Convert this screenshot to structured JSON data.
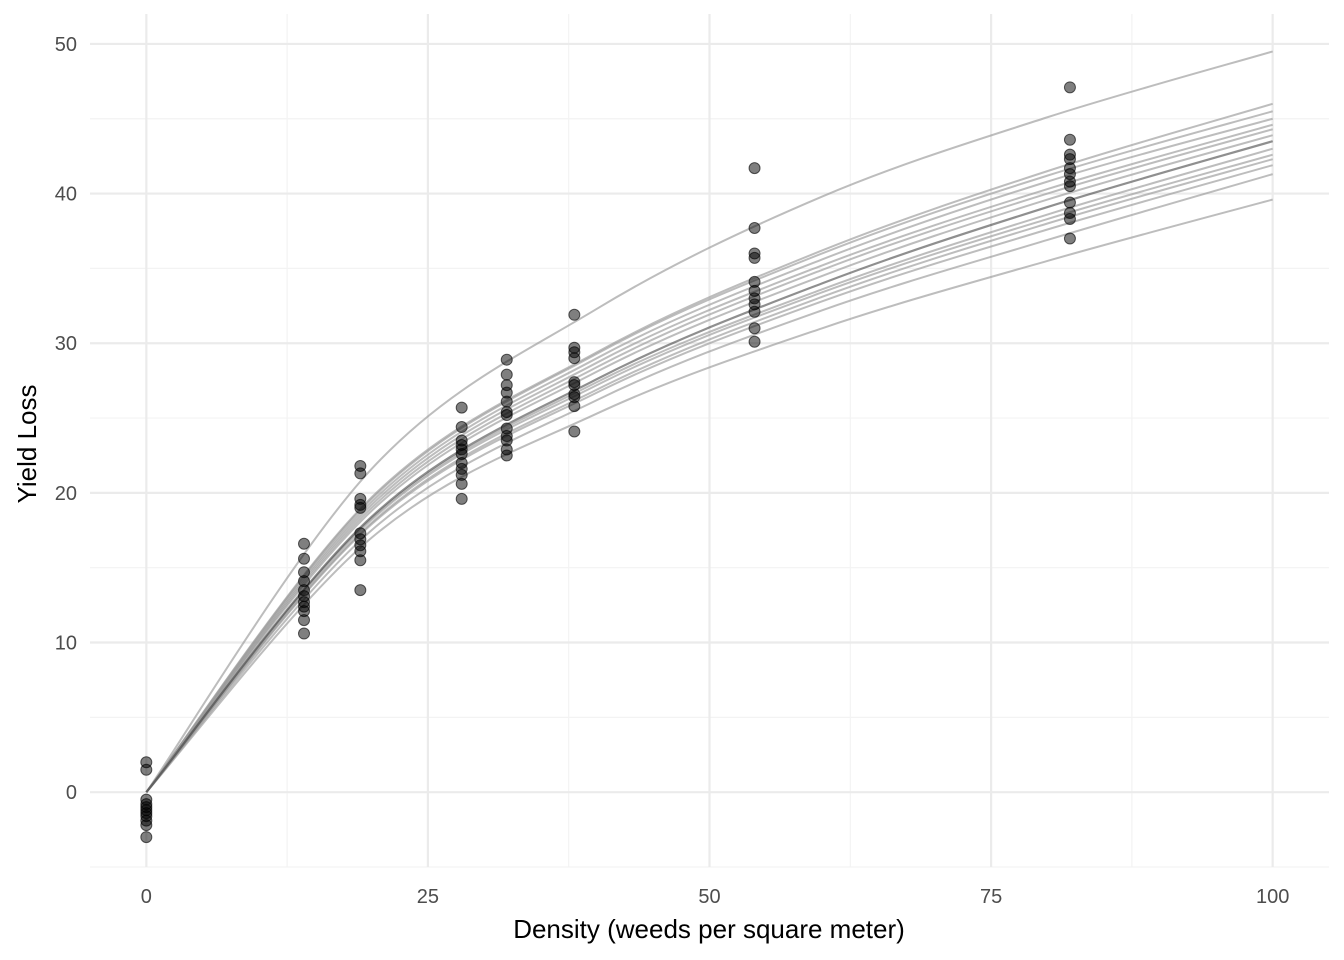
{
  "chart_data": {
    "type": "scatter",
    "title": "",
    "xlabel": "Density (weeds per square meter)",
    "ylabel": "Yield Loss",
    "xlim": [
      -5,
      105
    ],
    "ylim": [
      -5,
      52
    ],
    "x_ticks": [
      0,
      25,
      50,
      75,
      100
    ],
    "y_ticks": [
      0,
      10,
      20,
      30,
      40,
      50
    ],
    "x_tick_labels": [
      "0",
      "25",
      "50",
      "75",
      "100"
    ],
    "y_tick_labels": [
      "0",
      "10",
      "20",
      "30",
      "40",
      "50"
    ],
    "grid": true,
    "legend": "none",
    "point_color": "#000000",
    "point_opacity": 0.5,
    "curve_color": "#999999",
    "points": [
      {
        "x": 0,
        "y": 2.0
      },
      {
        "x": 0,
        "y": 1.5
      },
      {
        "x": 0,
        "y": -0.5
      },
      {
        "x": 0,
        "y": -0.8
      },
      {
        "x": 0,
        "y": -1.0
      },
      {
        "x": 0,
        "y": -1.2
      },
      {
        "x": 0,
        "y": -1.4
      },
      {
        "x": 0,
        "y": -1.6
      },
      {
        "x": 0,
        "y": -1.9
      },
      {
        "x": 0,
        "y": -2.2
      },
      {
        "x": 0,
        "y": -3.0
      },
      {
        "x": 14,
        "y": 16.6
      },
      {
        "x": 14,
        "y": 15.6
      },
      {
        "x": 14,
        "y": 14.7
      },
      {
        "x": 14,
        "y": 14.1
      },
      {
        "x": 14,
        "y": 13.5
      },
      {
        "x": 14,
        "y": 13.1
      },
      {
        "x": 14,
        "y": 12.7
      },
      {
        "x": 14,
        "y": 12.4
      },
      {
        "x": 14,
        "y": 12.1
      },
      {
        "x": 14,
        "y": 11.5
      },
      {
        "x": 14,
        "y": 10.6
      },
      {
        "x": 19,
        "y": 21.8
      },
      {
        "x": 19,
        "y": 21.3
      },
      {
        "x": 19,
        "y": 19.6
      },
      {
        "x": 19,
        "y": 19.2
      },
      {
        "x": 19,
        "y": 19.0
      },
      {
        "x": 19,
        "y": 17.3
      },
      {
        "x": 19,
        "y": 16.9
      },
      {
        "x": 19,
        "y": 16.5
      },
      {
        "x": 19,
        "y": 16.1
      },
      {
        "x": 19,
        "y": 15.5
      },
      {
        "x": 19,
        "y": 13.5
      },
      {
        "x": 28,
        "y": 25.7
      },
      {
        "x": 28,
        "y": 24.4
      },
      {
        "x": 28,
        "y": 23.5
      },
      {
        "x": 28,
        "y": 23.2
      },
      {
        "x": 28,
        "y": 22.9
      },
      {
        "x": 28,
        "y": 22.6
      },
      {
        "x": 28,
        "y": 22.0
      },
      {
        "x": 28,
        "y": 21.6
      },
      {
        "x": 28,
        "y": 21.2
      },
      {
        "x": 28,
        "y": 20.6
      },
      {
        "x": 28,
        "y": 19.6
      },
      {
        "x": 32,
        "y": 28.9
      },
      {
        "x": 32,
        "y": 27.9
      },
      {
        "x": 32,
        "y": 27.2
      },
      {
        "x": 32,
        "y": 26.7
      },
      {
        "x": 32,
        "y": 26.1
      },
      {
        "x": 32,
        "y": 25.4
      },
      {
        "x": 32,
        "y": 25.2
      },
      {
        "x": 32,
        "y": 24.3
      },
      {
        "x": 32,
        "y": 23.8
      },
      {
        "x": 32,
        "y": 23.5
      },
      {
        "x": 32,
        "y": 22.9
      },
      {
        "x": 32,
        "y": 22.5
      },
      {
        "x": 38,
        "y": 31.9
      },
      {
        "x": 38,
        "y": 29.7
      },
      {
        "x": 38,
        "y": 29.4
      },
      {
        "x": 38,
        "y": 29.0
      },
      {
        "x": 38,
        "y": 27.4
      },
      {
        "x": 38,
        "y": 27.2
      },
      {
        "x": 38,
        "y": 26.6
      },
      {
        "x": 38,
        "y": 26.4
      },
      {
        "x": 38,
        "y": 25.8
      },
      {
        "x": 38,
        "y": 24.1
      },
      {
        "x": 54,
        "y": 41.7
      },
      {
        "x": 54,
        "y": 37.7
      },
      {
        "x": 54,
        "y": 36.0
      },
      {
        "x": 54,
        "y": 35.7
      },
      {
        "x": 54,
        "y": 34.1
      },
      {
        "x": 54,
        "y": 33.5
      },
      {
        "x": 54,
        "y": 33.0
      },
      {
        "x": 54,
        "y": 32.6
      },
      {
        "x": 54,
        "y": 32.1
      },
      {
        "x": 54,
        "y": 31.0
      },
      {
        "x": 54,
        "y": 30.1
      },
      {
        "x": 82,
        "y": 47.1
      },
      {
        "x": 82,
        "y": 43.6
      },
      {
        "x": 82,
        "y": 42.6
      },
      {
        "x": 82,
        "y": 42.3
      },
      {
        "x": 82,
        "y": 41.7
      },
      {
        "x": 82,
        "y": 41.3
      },
      {
        "x": 82,
        "y": 40.8
      },
      {
        "x": 82,
        "y": 40.5
      },
      {
        "x": 82,
        "y": 39.4
      },
      {
        "x": 82,
        "y": 38.7
      },
      {
        "x": 82,
        "y": 38.3
      },
      {
        "x": 82,
        "y": 37.0
      }
    ],
    "curves": [
      {
        "x": [
          0,
          20,
          40,
          60,
          80,
          100
        ],
        "y": [
          0,
          21.6,
          32.3,
          39.8,
          45.1,
          49.5
        ]
      },
      {
        "x": [
          0,
          20,
          40,
          60,
          80,
          100
        ],
        "y": [
          0,
          19.7,
          29.4,
          36.2,
          41.5,
          46.0
        ]
      },
      {
        "x": [
          0,
          20,
          40,
          60,
          80,
          100
        ],
        "y": [
          0,
          19.6,
          29.3,
          36.0,
          41.2,
          45.5
        ]
      },
      {
        "x": [
          0,
          20,
          40,
          60,
          80,
          100
        ],
        "y": [
          0,
          19.4,
          29.0,
          35.6,
          40.8,
          45.0
        ]
      },
      {
        "x": [
          0,
          20,
          40,
          60,
          80,
          100
        ],
        "y": [
          0,
          19.2,
          28.7,
          35.2,
          40.3,
          44.6
        ]
      },
      {
        "x": [
          0,
          20,
          40,
          60,
          80,
          100
        ],
        "y": [
          0,
          19.0,
          28.4,
          34.9,
          40.0,
          44.3
        ]
      },
      {
        "x": [
          0,
          20,
          40,
          60,
          80,
          100
        ],
        "y": [
          0,
          18.8,
          28.1,
          34.5,
          39.6,
          43.9
        ]
      },
      {
        "x": [
          0,
          20,
          40,
          60,
          80,
          100
        ],
        "y": [
          0,
          18.3,
          27.4,
          33.6,
          38.6,
          43.0
        ]
      },
      {
        "x": [
          0,
          20,
          40,
          60,
          80,
          100
        ],
        "y": [
          0,
          18.2,
          27.2,
          33.4,
          38.3,
          42.6
        ]
      },
      {
        "x": [
          0,
          20,
          40,
          60,
          80,
          100
        ],
        "y": [
          0,
          18.0,
          26.9,
          33.1,
          38.0,
          42.3
        ]
      },
      {
        "x": [
          0,
          20,
          40,
          60,
          80,
          100
        ],
        "y": [
          0,
          17.9,
          26.7,
          32.8,
          37.6,
          41.9
        ]
      },
      {
        "x": [
          0,
          20,
          40,
          60,
          80,
          100
        ],
        "y": [
          0,
          17.5,
          26.2,
          32.2,
          36.9,
          41.3
        ]
      },
      {
        "x": [
          0,
          20,
          40,
          60,
          80,
          100
        ],
        "y": [
          0,
          17.0,
          25.3,
          31.0,
          35.5,
          39.6
        ]
      }
    ],
    "mean_curve": {
      "x": [
        0,
        20,
        40,
        60,
        80,
        100
      ],
      "y": [
        0,
        18.4,
        27.6,
        34.0,
        39.1,
        43.5
      ]
    }
  }
}
